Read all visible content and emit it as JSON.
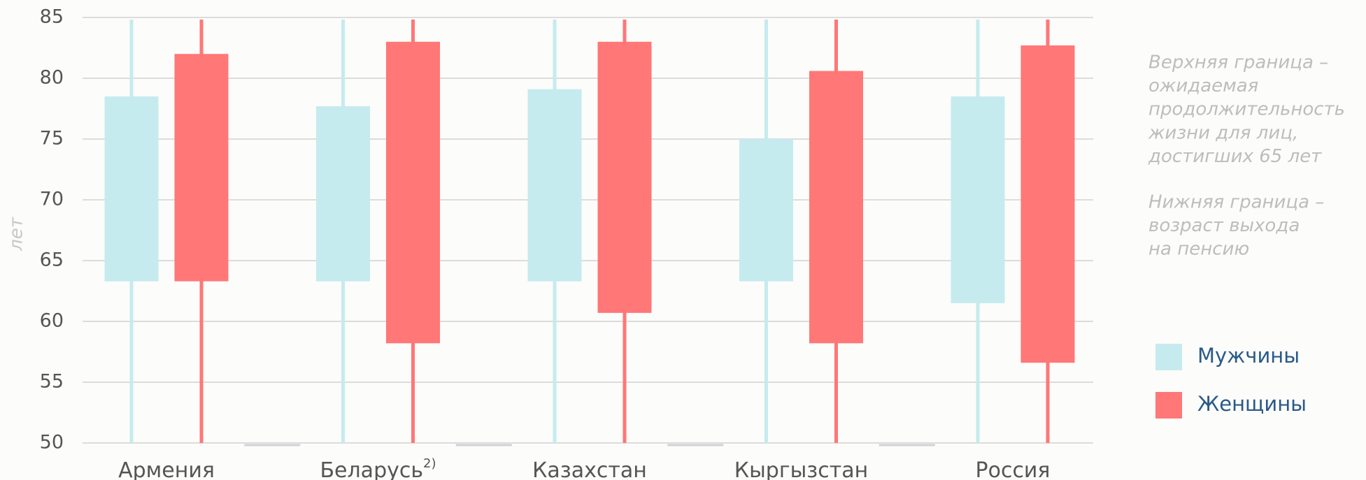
{
  "chart_data": {
    "type": "range_bar",
    "y_label": "лет",
    "categories": [
      "Армения",
      "Беларусь",
      "Казахстан",
      "Кыргызстан",
      "Россия"
    ],
    "footnote_marks": {
      "1": "2)"
    },
    "series": [
      {
        "name": "Мужчины",
        "color": "#c5ebee",
        "low": [
          63.3,
          63.3,
          63.3,
          63.3,
          61.5
        ],
        "high": [
          78.5,
          77.7,
          79.1,
          75.0,
          78.5
        ]
      },
      {
        "name": "Женщины",
        "color": "#ff7777",
        "low": [
          63.3,
          58.2,
          60.7,
          58.2,
          56.6
        ],
        "high": [
          82.0,
          83.0,
          83.0,
          80.6,
          82.7
        ]
      }
    ],
    "ylim": [
      50,
      85
    ],
    "yticks": [
      50,
      55,
      60,
      65,
      70,
      75,
      80,
      85
    ],
    "grid": true,
    "annotations": [
      [
        "Верхняя граница –",
        "ожидаемая",
        "продолжительность",
        "жизни для лиц,",
        "достигших 65 лет"
      ],
      [
        "Нижняя граница –",
        "возраст выхода",
        "на пенсию"
      ]
    ]
  }
}
